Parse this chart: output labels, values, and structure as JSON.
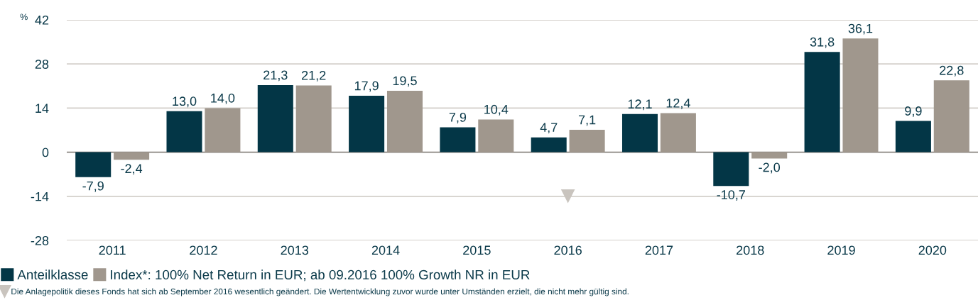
{
  "chart_data": {
    "type": "bar",
    "ylabel": "%",
    "categories": [
      "2011",
      "2012",
      "2013",
      "2014",
      "2015",
      "2016",
      "2017",
      "2018",
      "2019",
      "2020"
    ],
    "series": [
      {
        "name": "Anteilklasse",
        "color": "#033646",
        "values": [
          -7.9,
          13.0,
          21.3,
          17.9,
          7.9,
          4.7,
          12.1,
          -10.7,
          31.8,
          9.9
        ],
        "value_labels": [
          "-7,9",
          "13,0",
          "21,3",
          "17,9",
          "7,9",
          "4,7",
          "12,1",
          "-10,7",
          "31,8",
          "9,9"
        ]
      },
      {
        "name": "Index*: 100% Net Return in EUR; ab 09.2016 100% Growth NR in EUR",
        "color": "#a0978d",
        "values": [
          -2.4,
          14.0,
          21.2,
          19.5,
          10.4,
          7.1,
          12.4,
          -2.0,
          36.1,
          22.8
        ],
        "value_labels": [
          "-2,4",
          "14,0",
          "21,2",
          "19,5",
          "10,4",
          "7,1",
          "12,4",
          "-2,0",
          "36,1",
          "22,8"
        ]
      },
      {
        "name": "Die Anlagepolitik dieses Fonds hat sich ab September 2016 wesentlich geändert. Die Wertentwicklung zuvor wurde unter Umständen erzielt, die nicht mehr gültig sind.",
        "type": "scatter",
        "marker": "triangle",
        "color": "#c9c4be",
        "values": [
          null,
          null,
          null,
          null,
          null,
          -14,
          null,
          null,
          null,
          null
        ]
      }
    ],
    "ylim": [
      -28,
      42
    ],
    "yticks": [
      -28,
      -14,
      0,
      14,
      28,
      42
    ],
    "grid": "y",
    "legend": "bottom left"
  }
}
